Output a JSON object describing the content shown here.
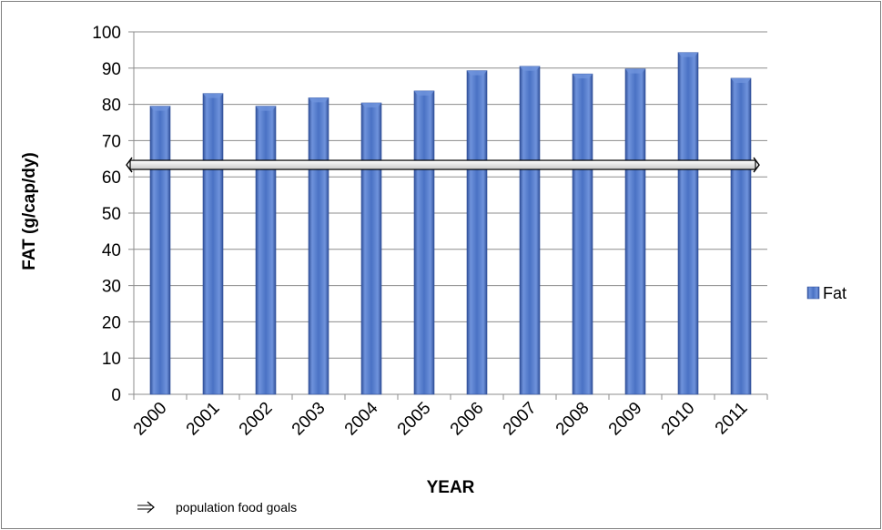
{
  "chart_data": {
    "type": "bar",
    "categories": [
      "2000",
      "2001",
      "2002",
      "2003",
      "2004",
      "2005",
      "2006",
      "2007",
      "2008",
      "2009",
      "2010",
      "2011"
    ],
    "series": [
      {
        "name": "Fat",
        "values": [
          79.5,
          83,
          79.5,
          81.8,
          80.4,
          83.7,
          89.3,
          90.5,
          88.4,
          89.8,
          94.3,
          87.2
        ]
      }
    ],
    "ylim": [
      0,
      100
    ],
    "yticks": [
      0,
      10,
      20,
      30,
      40,
      50,
      60,
      70,
      80,
      90,
      100
    ],
    "ylabel": "FAT (g/cap/dy)",
    "xlabel": "YEAR",
    "grid": true,
    "legend_placement": "right",
    "reference_line": {
      "label": "population food goals",
      "value": 63.3
    },
    "colors": {
      "bar": "#4a72c4",
      "bar_dark": "#2f4f99",
      "bar_light": "#6f93dc",
      "grid": "#8c8c8c",
      "axis": "#8c8c8c",
      "text": "#000000",
      "frame": "#7f7f7f"
    }
  }
}
